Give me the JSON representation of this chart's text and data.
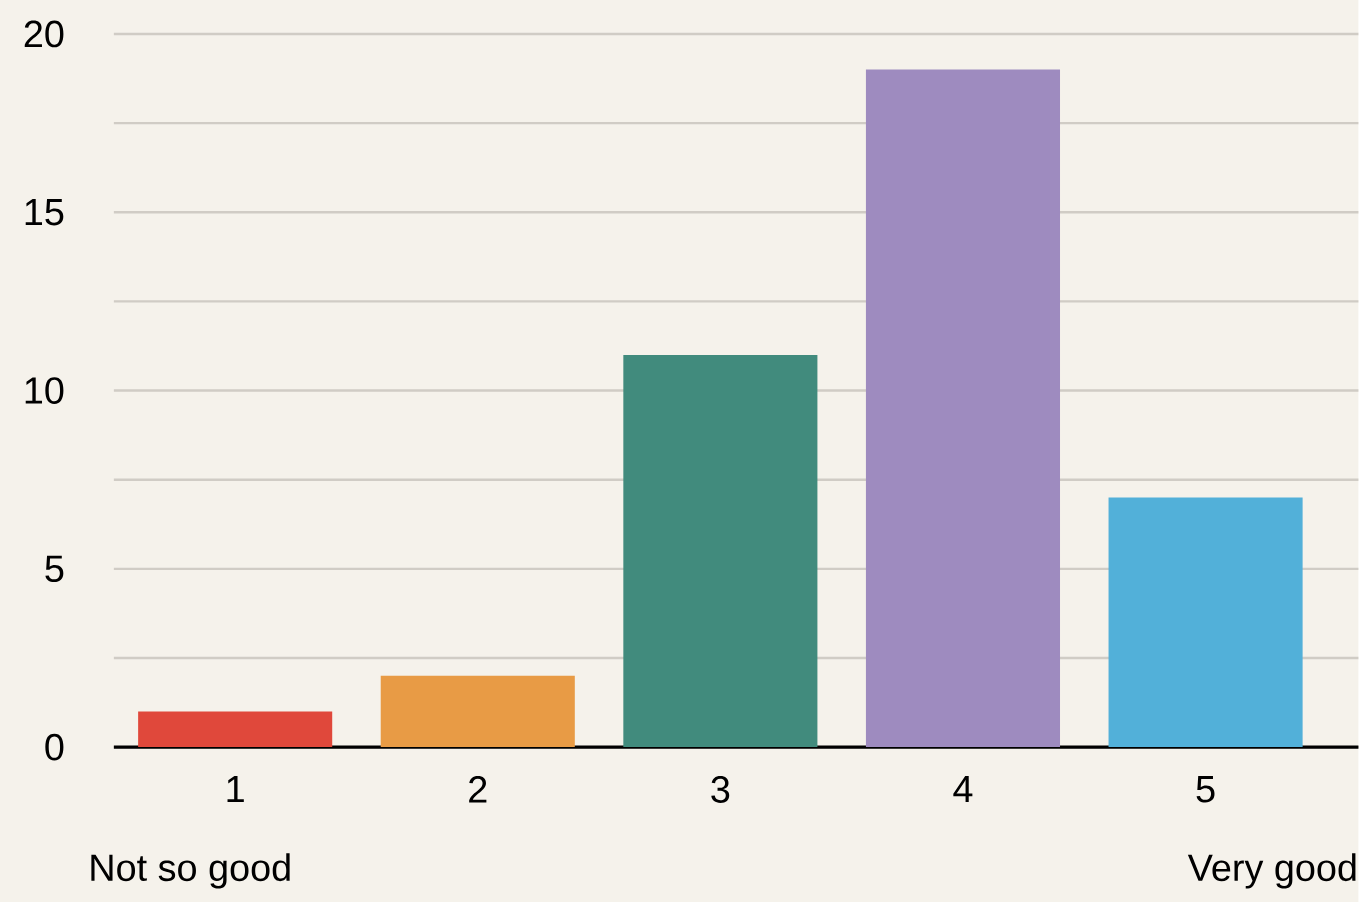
{
  "chart_data": {
    "type": "bar",
    "categories": [
      "1",
      "2",
      "3",
      "4",
      "5"
    ],
    "values": [
      1,
      2,
      11,
      19,
      7
    ],
    "colors": [
      "#e0483b",
      "#e89b45",
      "#418b7d",
      "#9e8bbf",
      "#52b0d9"
    ],
    "ylim": [
      0,
      20
    ],
    "yticks": [
      0,
      {
        "value": 2.5,
        "label": null
      },
      5,
      {
        "value": 7.5,
        "label": null
      },
      10,
      {
        "value": 12.5,
        "label": null
      },
      15,
      {
        "value": 17.5,
        "label": null
      },
      20
    ],
    "grid": "y",
    "annotations": [
      "Not so good",
      "Very good"
    ]
  }
}
